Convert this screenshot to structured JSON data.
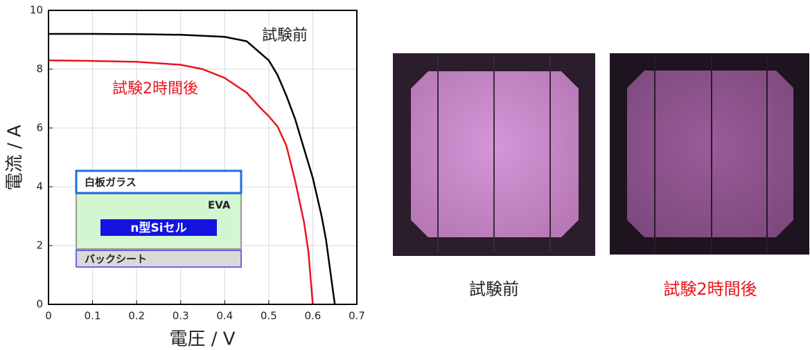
{
  "chart_data": {
    "type": "line",
    "x_label": "電圧 / V",
    "y_label": "電流 / A",
    "xlim": [
      0,
      0.7
    ],
    "xticks": [
      0,
      0.1,
      0.2,
      0.3,
      0.4,
      0.5,
      0.6,
      0.7
    ],
    "ylim": [
      0,
      10
    ],
    "yticks": [
      0,
      2,
      4,
      6,
      8,
      10
    ],
    "grid": true,
    "series": [
      {
        "name": "試験前",
        "color": "#000000",
        "x": [
          0,
          0.1,
          0.2,
          0.3,
          0.4,
          0.45,
          0.5,
          0.52,
          0.54,
          0.56,
          0.58,
          0.6,
          0.62,
          0.63,
          0.64,
          0.65
        ],
        "values": [
          9.2,
          9.2,
          9.19,
          9.17,
          9.1,
          8.95,
          8.3,
          7.8,
          7.1,
          6.3,
          5.3,
          4.3,
          3.0,
          2.2,
          1.1,
          0
        ]
      },
      {
        "name": "試験2時間後",
        "color": "#e8141c",
        "x": [
          0,
          0.1,
          0.2,
          0.3,
          0.35,
          0.4,
          0.45,
          0.48,
          0.5,
          0.52,
          0.54,
          0.56,
          0.58,
          0.59,
          0.6
        ],
        "values": [
          8.3,
          8.28,
          8.25,
          8.15,
          8.0,
          7.7,
          7.2,
          6.7,
          6.4,
          6.05,
          5.4,
          4.2,
          2.8,
          1.8,
          0
        ]
      }
    ]
  },
  "inset": {
    "layers": [
      "白板ガラス",
      "EVA",
      "n型Siセル",
      "バックシート"
    ]
  },
  "photos": [
    {
      "caption": "試験前"
    },
    {
      "caption": "試験2時間後"
    }
  ]
}
